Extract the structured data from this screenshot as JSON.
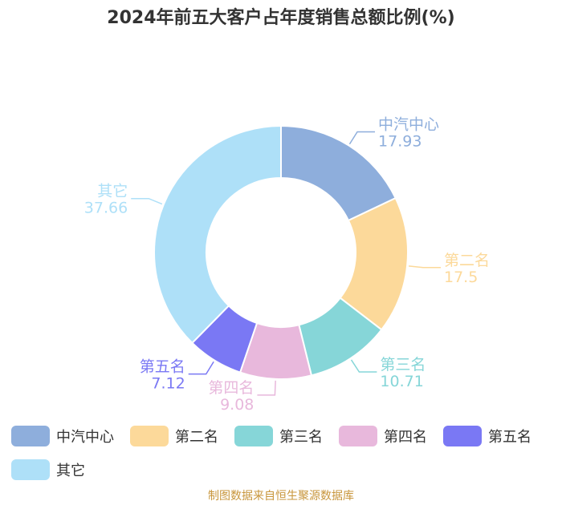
{
  "chart_data": {
    "type": "pie",
    "variant": "donut",
    "title": "2024年前五大客户占年度销售总额比例(%)",
    "categories": [
      "中汽中心",
      "第二名",
      "第三名",
      "第四名",
      "第五名",
      "其它"
    ],
    "values": [
      17.93,
      17.5,
      10.71,
      9.08,
      7.12,
      37.66
    ],
    "value_labels": [
      "17.93",
      "17.5",
      "10.71",
      "9.08",
      "7.12",
      "37.66"
    ],
    "colors": [
      "#8eaedc",
      "#fcd99a",
      "#86d6d8",
      "#e8b8dc",
      "#7a78f4",
      "#aee0f8"
    ],
    "legend_position": "bottom"
  },
  "footer": {
    "source": "制图数据来自恒生聚源数据库"
  }
}
